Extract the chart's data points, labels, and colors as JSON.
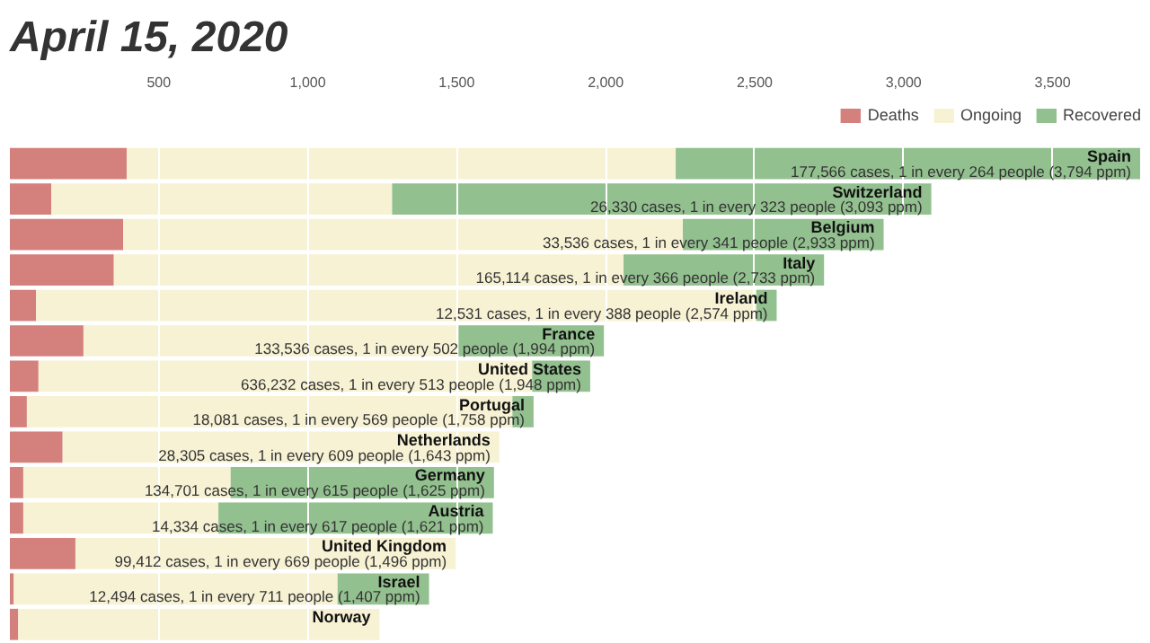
{
  "chart_data": {
    "type": "bar",
    "orientation": "horizontal",
    "stacked": true,
    "title": "April 15, 2020",
    "categories": [
      "Spain",
      "Switzerland",
      "Belgium",
      "Italy",
      "Ireland",
      "France",
      "United States",
      "Portugal",
      "Netherlands",
      "Germany",
      "Austria",
      "United Kingdom",
      "Israel",
      "Norway"
    ],
    "series": [
      {
        "name": "Deaths",
        "color": "#d4817e",
        "values": [
          392,
          139,
          380,
          349,
          88,
          247,
          96,
          57,
          177,
          45,
          45,
          220,
          13,
          28
        ]
      },
      {
        "name": "Ongoing",
        "color": "#f7f2d4",
        "values": [
          1843,
          1144,
          1879,
          1711,
          2418,
          1259,
          1657,
          1630,
          1466,
          696,
          655,
          1276,
          1087,
          1213
        ]
      },
      {
        "name": "Recovered",
        "color": "#93c08f",
        "values": [
          1559,
          1810,
          674,
          673,
          68,
          488,
          195,
          71,
          0,
          884,
          921,
          0,
          307,
          0
        ]
      }
    ],
    "xlim": [
      0,
      3800
    ],
    "xticks": [
      500,
      {
        "value": 1000,
        "label": "1,000"
      },
      {
        "value": 1500,
        "label": "1,500"
      },
      {
        "value": 2000,
        "label": "2,000"
      },
      {
        "value": 2500,
        "label": "2,500"
      },
      {
        "value": 3000,
        "label": "3,000"
      },
      {
        "value": 3500,
        "label": "3,500"
      }
    ],
    "grid": "x",
    "legend": "top right",
    "tick_labels": "x",
    "annotations": [
      {
        "text": "177,566 cases, 1 in every 264 people (3,794 ppm)",
        "x": 3794,
        "y": "Spain"
      },
      {
        "text": "26,330 cases, 1 in every 323 people (3,093 ppm)",
        "x": 3093,
        "y": "Switzerland"
      },
      {
        "text": "33,536 cases, 1 in every 341 people (2,933 ppm)",
        "x": 2933,
        "y": "Belgium"
      },
      {
        "text": "165,114 cases, 1 in every 366 people (2,733 ppm)",
        "x": 2733,
        "y": "Italy"
      },
      {
        "text": "12,531 cases, 1 in every 388 people (2,574 ppm)",
        "x": 2574,
        "y": "Ireland"
      },
      {
        "text": "133,536 cases, 1 in every 502 people (1,994 ppm)",
        "x": 1994,
        "y": "France"
      },
      {
        "text": "636,232 cases, 1 in every 513 people (1,948 ppm)",
        "x": 1948,
        "y": "United States"
      },
      {
        "text": "18,081 cases, 1 in every 569 people (1,758 ppm)",
        "x": 1758,
        "y": "Portugal"
      },
      {
        "text": "28,305 cases, 1 in every 609 people (1,643 ppm)",
        "x": 1643,
        "y": "Netherlands"
      },
      {
        "text": "134,701 cases, 1 in every 615 people (1,625 ppm)",
        "x": 1625,
        "y": "Germany"
      },
      {
        "text": "14,334 cases, 1 in every 617 people (1,621 ppm)",
        "x": 1621,
        "y": "Austria"
      },
      {
        "text": "99,412 cases, 1 in every 669 people (1,496 ppm)",
        "x": 1496,
        "y": "United Kingdom"
      },
      {
        "text": "12,494 cases, 1 in every 711 people (1,407 ppm)",
        "x": 1407,
        "y": "Israel"
      }
    ]
  }
}
